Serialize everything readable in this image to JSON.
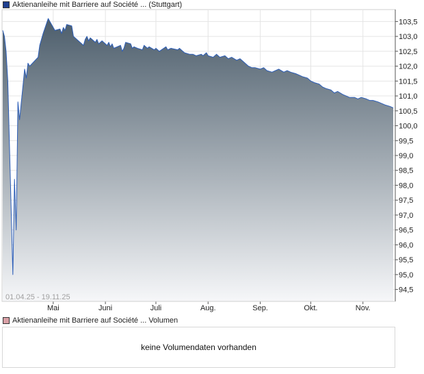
{
  "legend": {
    "price_label": "Aktienanleihe mit Barriere auf Société ... (Stuttgart)",
    "price_color": "#1f3f8f",
    "volume_label": "Aktienanleihe mit Barriere auf Société ... Volumen",
    "volume_color": "#d9a0a6"
  },
  "date_range": "01.04.25 - 19.11.25",
  "volume_message": "keine Volumendaten vorhanden",
  "colors": {
    "line": "#2b5db8",
    "fill_top": "#4c5d6b",
    "fill_bottom": "#f6f7f9",
    "grid": "#e4e4e4",
    "axis": "#555555"
  },
  "chart_data": {
    "type": "area",
    "title": "",
    "xlabel": "",
    "ylabel": "",
    "ylim": [
      94.1,
      103.9
    ],
    "yticks": [
      "103,5",
      "103,0",
      "102,5",
      "102,0",
      "101,5",
      "101,0",
      "100,5",
      "100,0",
      "99,5",
      "99,0",
      "98,5",
      "98,0",
      "97,5",
      "97,0",
      "96,5",
      "96,0",
      "95,5",
      "95,0",
      "94,5"
    ],
    "ytick_values": [
      103.5,
      103.0,
      102.5,
      102.0,
      101.5,
      101.0,
      100.5,
      100.0,
      99.5,
      99.0,
      98.5,
      98.0,
      97.5,
      97.0,
      96.5,
      96.0,
      95.5,
      95.0,
      94.5
    ],
    "xticks": [
      "Mai",
      "Juni",
      "Juli",
      "Aug.",
      "Sep.",
      "Okt.",
      "Nov."
    ],
    "xtick_dates": [
      "2025-05-01",
      "2025-06-01",
      "2025-07-01",
      "2025-08-01",
      "2025-09-01",
      "2025-10-01",
      "2025-11-01"
    ],
    "x_range": [
      "2025-04-01",
      "2025-11-19"
    ],
    "grid": true,
    "series": [
      {
        "name": "Aktienanleihe mit Barriere auf Société ... (Stuttgart)",
        "points": [
          [
            "2025-04-01",
            103.2
          ],
          [
            "2025-04-02",
            103.0
          ],
          [
            "2025-04-03",
            102.5
          ],
          [
            "2025-04-04",
            101.5
          ],
          [
            "2025-04-07",
            95.0
          ],
          [
            "2025-04-08",
            98.2
          ],
          [
            "2025-04-09",
            96.5
          ],
          [
            "2025-04-10",
            100.8
          ],
          [
            "2025-04-11",
            100.2
          ],
          [
            "2025-04-14",
            101.9
          ],
          [
            "2025-04-15",
            101.6
          ],
          [
            "2025-04-16",
            102.1
          ],
          [
            "2025-04-17",
            102.0
          ],
          [
            "2025-04-22",
            102.3
          ],
          [
            "2025-04-23",
            102.7
          ],
          [
            "2025-04-24",
            102.9
          ],
          [
            "2025-04-25",
            103.1
          ],
          [
            "2025-04-28",
            103.6
          ],
          [
            "2025-04-29",
            103.5
          ],
          [
            "2025-04-30",
            103.4
          ],
          [
            "2025-05-02",
            103.2
          ],
          [
            "2025-05-05",
            103.25
          ],
          [
            "2025-05-06",
            103.1
          ],
          [
            "2025-05-07",
            103.3
          ],
          [
            "2025-05-08",
            103.2
          ],
          [
            "2025-05-09",
            103.4
          ],
          [
            "2025-05-12",
            103.35
          ],
          [
            "2025-05-13",
            103.0
          ],
          [
            "2025-05-14",
            102.95
          ],
          [
            "2025-05-15",
            102.9
          ],
          [
            "2025-05-19",
            102.7
          ],
          [
            "2025-05-20",
            102.9
          ],
          [
            "2025-05-21",
            103.0
          ],
          [
            "2025-05-22",
            102.85
          ],
          [
            "2025-05-23",
            102.95
          ],
          [
            "2025-05-26",
            102.8
          ],
          [
            "2025-05-27",
            102.9
          ],
          [
            "2025-05-28",
            102.75
          ],
          [
            "2025-05-30",
            102.85
          ],
          [
            "2025-06-02",
            102.7
          ],
          [
            "2025-06-03",
            102.8
          ],
          [
            "2025-06-04",
            102.65
          ],
          [
            "2025-06-05",
            102.75
          ],
          [
            "2025-06-06",
            102.6
          ],
          [
            "2025-06-10",
            102.7
          ],
          [
            "2025-06-11",
            102.5
          ],
          [
            "2025-06-12",
            102.6
          ],
          [
            "2025-06-13",
            102.8
          ],
          [
            "2025-06-16",
            102.75
          ],
          [
            "2025-06-17",
            102.6
          ],
          [
            "2025-06-18",
            102.65
          ],
          [
            "2025-06-20",
            102.6
          ],
          [
            "2025-06-23",
            102.55
          ],
          [
            "2025-06-24",
            102.7
          ],
          [
            "2025-06-26",
            102.6
          ],
          [
            "2025-06-27",
            102.65
          ],
          [
            "2025-06-30",
            102.55
          ],
          [
            "2025-07-01",
            102.6
          ],
          [
            "2025-07-03",
            102.5
          ],
          [
            "2025-07-07",
            102.65
          ],
          [
            "2025-07-08",
            102.55
          ],
          [
            "2025-07-10",
            102.6
          ],
          [
            "2025-07-14",
            102.55
          ],
          [
            "2025-07-15",
            102.6
          ],
          [
            "2025-07-17",
            102.5
          ],
          [
            "2025-07-18",
            102.45
          ],
          [
            "2025-07-21",
            102.4
          ],
          [
            "2025-07-23",
            102.4
          ],
          [
            "2025-07-25",
            102.35
          ],
          [
            "2025-07-28",
            102.4
          ],
          [
            "2025-07-29",
            102.35
          ],
          [
            "2025-07-31",
            102.45
          ],
          [
            "2025-08-01",
            102.35
          ],
          [
            "2025-08-04",
            102.3
          ],
          [
            "2025-08-06",
            102.4
          ],
          [
            "2025-08-08",
            102.3
          ],
          [
            "2025-08-11",
            102.35
          ],
          [
            "2025-08-13",
            102.25
          ],
          [
            "2025-08-15",
            102.3
          ],
          [
            "2025-08-18",
            102.2
          ],
          [
            "2025-08-20",
            102.25
          ],
          [
            "2025-08-22",
            102.15
          ],
          [
            "2025-08-25",
            102.0
          ],
          [
            "2025-08-27",
            101.95
          ],
          [
            "2025-08-29",
            101.95
          ],
          [
            "2025-09-01",
            101.9
          ],
          [
            "2025-09-03",
            101.95
          ],
          [
            "2025-09-05",
            101.85
          ],
          [
            "2025-09-08",
            101.8
          ],
          [
            "2025-09-10",
            101.85
          ],
          [
            "2025-09-12",
            101.9
          ],
          [
            "2025-09-15",
            101.8
          ],
          [
            "2025-09-17",
            101.85
          ],
          [
            "2025-09-19",
            101.8
          ],
          [
            "2025-09-22",
            101.75
          ],
          [
            "2025-09-24",
            101.7
          ],
          [
            "2025-09-26",
            101.65
          ],
          [
            "2025-09-29",
            101.6
          ],
          [
            "2025-10-01",
            101.5
          ],
          [
            "2025-10-03",
            101.45
          ],
          [
            "2025-10-06",
            101.4
          ],
          [
            "2025-10-08",
            101.3
          ],
          [
            "2025-10-10",
            101.25
          ],
          [
            "2025-10-13",
            101.2
          ],
          [
            "2025-10-15",
            101.1
          ],
          [
            "2025-10-17",
            101.15
          ],
          [
            "2025-10-20",
            101.05
          ],
          [
            "2025-10-22",
            101.0
          ],
          [
            "2025-10-24",
            100.95
          ],
          [
            "2025-10-27",
            100.95
          ],
          [
            "2025-10-29",
            100.9
          ],
          [
            "2025-10-31",
            100.95
          ],
          [
            "2025-11-03",
            100.9
          ],
          [
            "2025-11-05",
            100.85
          ],
          [
            "2025-11-07",
            100.85
          ],
          [
            "2025-11-10",
            100.8
          ],
          [
            "2025-11-12",
            100.75
          ],
          [
            "2025-11-14",
            100.7
          ],
          [
            "2025-11-17",
            100.65
          ],
          [
            "2025-11-19",
            100.6
          ]
        ]
      }
    ]
  }
}
